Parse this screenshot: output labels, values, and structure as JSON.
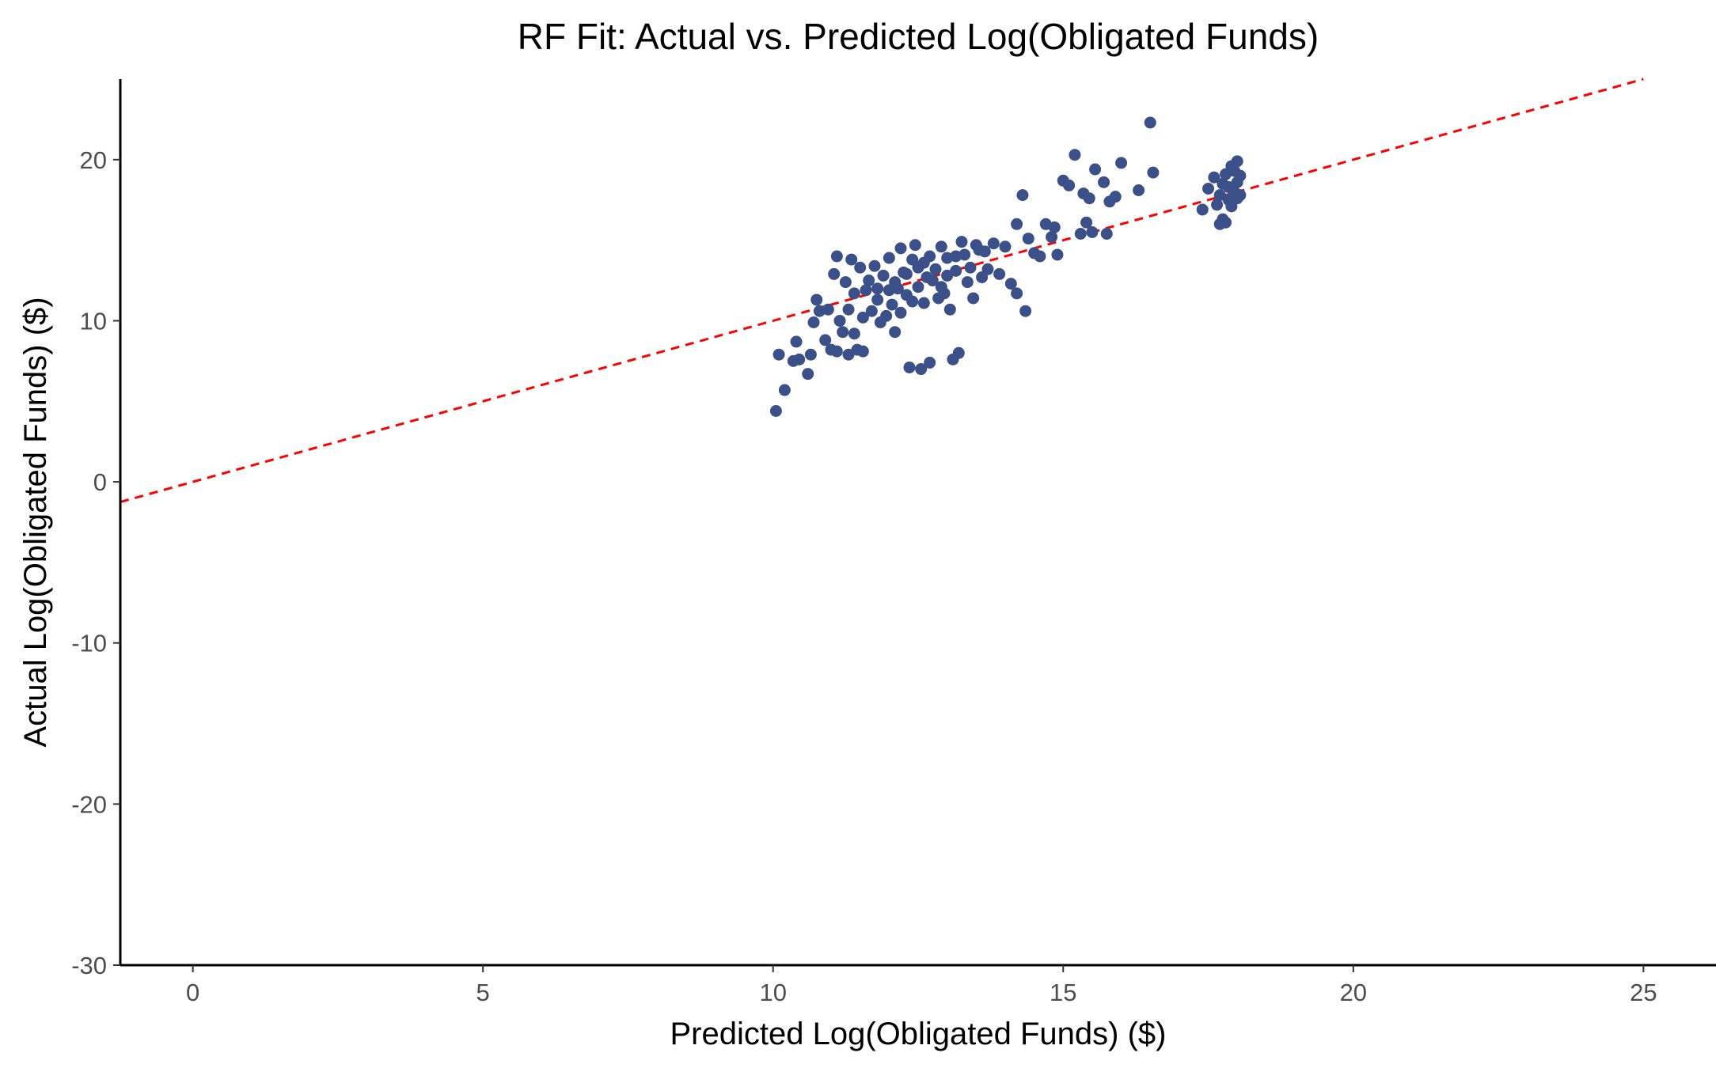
{
  "chart_data": {
    "type": "scatter",
    "title": "RF Fit: Actual vs. Predicted Log(Obligated Funds)",
    "xlabel": "Predicted Log(Obligated Funds) ($)",
    "ylabel": "Actual Log(Obligated Funds) ($)",
    "xlim": [
      -1.25,
      26.25
    ],
    "ylim": [
      -30,
      25
    ],
    "xticks": [
      0,
      5,
      10,
      15,
      20,
      25
    ],
    "xtick_labels": [
      "0",
      "5",
      "10",
      "15",
      "20",
      "25"
    ],
    "yticks": [
      -30,
      -20,
      -10,
      0,
      10,
      20
    ],
    "ytick_labels": [
      "-30",
      "-20",
      "-10",
      "0",
      "10",
      "20"
    ],
    "grid": false,
    "legend": "none",
    "point_color": "#3b5089",
    "reference_line": {
      "style": "dashed",
      "color": "#ff0000",
      "slope": 1,
      "intercept": 0
    },
    "series": [
      {
        "points": [
          [
            10.05,
            4.4
          ],
          [
            10.1,
            7.9
          ],
          [
            10.2,
            5.7
          ],
          [
            10.35,
            7.5
          ],
          [
            10.4,
            8.7
          ],
          [
            10.45,
            7.6
          ],
          [
            10.6,
            6.7
          ],
          [
            10.65,
            7.9
          ],
          [
            10.7,
            9.9
          ],
          [
            10.75,
            11.3
          ],
          [
            10.8,
            10.6
          ],
          [
            10.9,
            8.8
          ],
          [
            10.95,
            10.7
          ],
          [
            11.0,
            8.2
          ],
          [
            11.05,
            12.9
          ],
          [
            11.1,
            14.0
          ],
          [
            11.1,
            8.1
          ],
          [
            11.15,
            10.0
          ],
          [
            11.2,
            9.3
          ],
          [
            11.25,
            12.4
          ],
          [
            11.3,
            7.9
          ],
          [
            11.3,
            10.7
          ],
          [
            11.35,
            13.8
          ],
          [
            11.4,
            11.7
          ],
          [
            11.4,
            9.2
          ],
          [
            11.45,
            8.2
          ],
          [
            11.5,
            13.3
          ],
          [
            11.55,
            10.2
          ],
          [
            11.55,
            8.1
          ],
          [
            11.6,
            11.9
          ],
          [
            11.65,
            12.5
          ],
          [
            11.7,
            10.6
          ],
          [
            11.75,
            13.4
          ],
          [
            11.8,
            12.0
          ],
          [
            11.8,
            11.3
          ],
          [
            11.85,
            9.9
          ],
          [
            11.9,
            12.8
          ],
          [
            11.95,
            10.3
          ],
          [
            12.0,
            11.9
          ],
          [
            12.0,
            13.9
          ],
          [
            12.05,
            11.0
          ],
          [
            12.1,
            12.4
          ],
          [
            12.1,
            9.3
          ],
          [
            12.15,
            12.0
          ],
          [
            12.2,
            14.5
          ],
          [
            12.2,
            10.5
          ],
          [
            12.25,
            13.0
          ],
          [
            12.3,
            11.6
          ],
          [
            12.3,
            12.9
          ],
          [
            12.35,
            7.1
          ],
          [
            12.4,
            13.8
          ],
          [
            12.4,
            11.2
          ],
          [
            12.45,
            14.7
          ],
          [
            12.5,
            12.1
          ],
          [
            12.5,
            13.3
          ],
          [
            12.55,
            7.0
          ],
          [
            12.6,
            13.6
          ],
          [
            12.6,
            11.1
          ],
          [
            12.65,
            12.7
          ],
          [
            12.7,
            14.0
          ],
          [
            12.7,
            7.4
          ],
          [
            12.75,
            12.5
          ],
          [
            12.8,
            13.2
          ],
          [
            12.85,
            11.4
          ],
          [
            12.9,
            14.6
          ],
          [
            12.9,
            12.1
          ],
          [
            12.95,
            11.7
          ],
          [
            13.0,
            13.9
          ],
          [
            13.0,
            12.8
          ],
          [
            13.05,
            10.7
          ],
          [
            13.1,
            7.6
          ],
          [
            13.15,
            14.0
          ],
          [
            13.15,
            13.1
          ],
          [
            13.2,
            8.0
          ],
          [
            13.25,
            14.9
          ],
          [
            13.3,
            14.1
          ],
          [
            13.35,
            12.4
          ],
          [
            13.4,
            13.3
          ],
          [
            13.45,
            11.4
          ],
          [
            13.5,
            14.7
          ],
          [
            13.55,
            14.4
          ],
          [
            13.6,
            12.7
          ],
          [
            13.65,
            14.3
          ],
          [
            13.7,
            13.2
          ],
          [
            13.8,
            14.8
          ],
          [
            13.9,
            12.9
          ],
          [
            14.0,
            14.6
          ],
          [
            14.1,
            12.3
          ],
          [
            14.2,
            16.0
          ],
          [
            14.2,
            11.7
          ],
          [
            14.3,
            17.8
          ],
          [
            14.35,
            10.6
          ],
          [
            14.4,
            15.1
          ],
          [
            14.5,
            14.2
          ],
          [
            14.6,
            14.0
          ],
          [
            14.7,
            16.0
          ],
          [
            14.8,
            15.2
          ],
          [
            14.85,
            15.8
          ],
          [
            14.9,
            14.1
          ],
          [
            15.0,
            18.7
          ],
          [
            15.1,
            18.4
          ],
          [
            15.2,
            20.3
          ],
          [
            15.3,
            15.4
          ],
          [
            15.35,
            17.9
          ],
          [
            15.4,
            16.1
          ],
          [
            15.45,
            17.6
          ],
          [
            15.5,
            15.5
          ],
          [
            15.55,
            19.4
          ],
          [
            15.7,
            18.6
          ],
          [
            15.75,
            15.4
          ],
          [
            15.8,
            17.4
          ],
          [
            15.9,
            17.7
          ],
          [
            16.0,
            19.8
          ],
          [
            16.3,
            18.1
          ],
          [
            16.5,
            22.3
          ],
          [
            16.55,
            19.2
          ],
          [
            17.4,
            16.9
          ],
          [
            17.5,
            18.2
          ],
          [
            17.6,
            18.9
          ],
          [
            17.65,
            17.2
          ],
          [
            17.7,
            16.0
          ],
          [
            17.7,
            17.8
          ],
          [
            17.75,
            18.5
          ],
          [
            17.75,
            16.3
          ],
          [
            17.8,
            16.1
          ],
          [
            17.8,
            19.1
          ],
          [
            17.85,
            17.5
          ],
          [
            17.85,
            18.3
          ],
          [
            17.9,
            19.6
          ],
          [
            17.9,
            17.1
          ],
          [
            17.95,
            18.0
          ],
          [
            17.95,
            19.3
          ],
          [
            18.0,
            17.6
          ],
          [
            18.0,
            19.9
          ],
          [
            18.0,
            18.6
          ],
          [
            18.05,
            17.8
          ],
          [
            18.05,
            19.0
          ]
        ]
      }
    ]
  }
}
